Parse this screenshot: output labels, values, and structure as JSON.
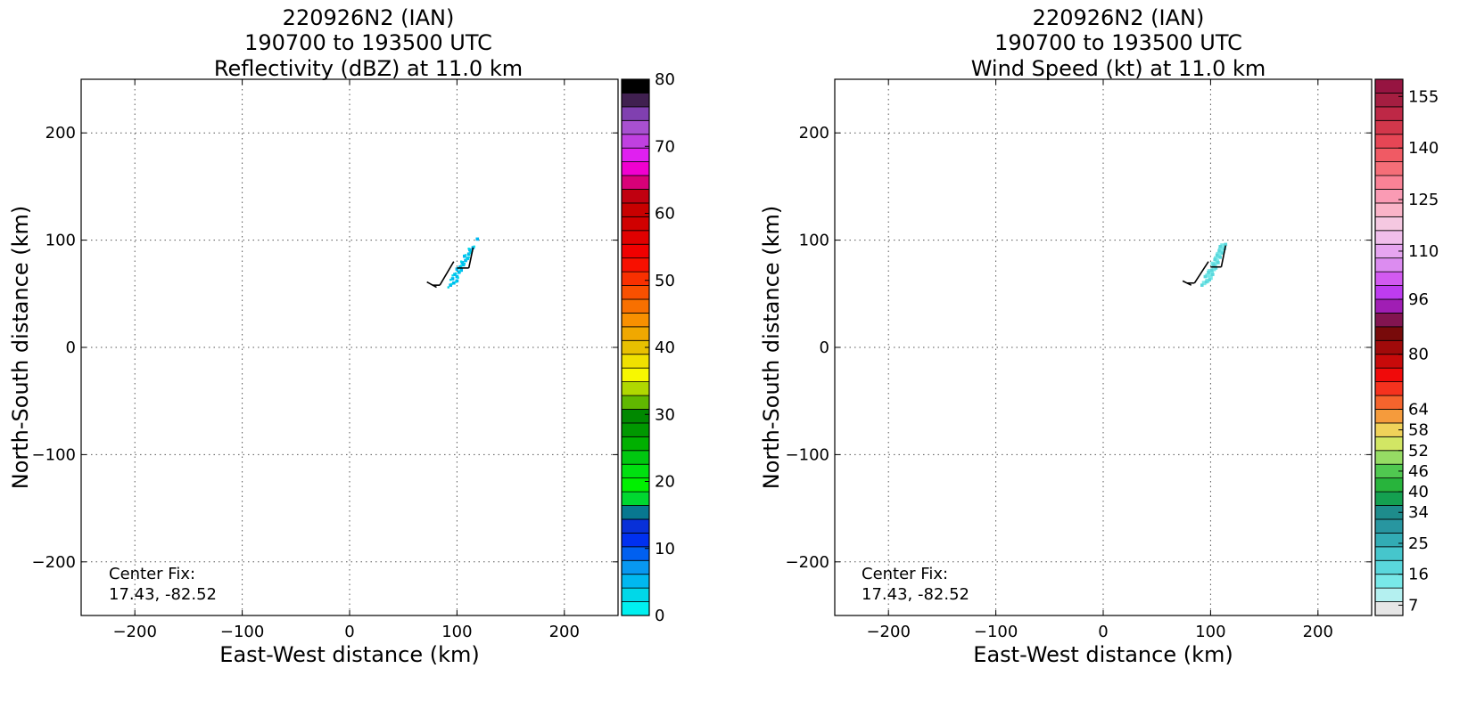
{
  "chart_data": [
    {
      "type": "heatmap",
      "title_lines": [
        "220926N2 (IAN)",
        "190700 to 193500 UTC",
        "Reflectivity (dBZ) at 11.0 km"
      ],
      "xlabel": "East-West distance (km)",
      "ylabel": "North-South distance (km)",
      "xlim": [
        -250,
        250
      ],
      "ylim": [
        -250,
        250
      ],
      "xticks": [
        -200,
        -100,
        0,
        100,
        200
      ],
      "yticks": [
        -200,
        -100,
        0,
        100,
        200
      ],
      "xticklabels": [
        "−200",
        "−100",
        "0",
        "100",
        "200"
      ],
      "yticklabels": [
        "−200",
        "−100",
        "0",
        "100",
        "200"
      ],
      "grid": true,
      "annotation": {
        "line1": "Center Fix:",
        "line2": "17.43, -82.52"
      },
      "colorbar": {
        "min": 0,
        "max": 80,
        "ticks": [
          0,
          10,
          20,
          30,
          40,
          50,
          60,
          70,
          80
        ],
        "ticklabels": [
          "0",
          "10",
          "20",
          "30",
          "40",
          "50",
          "60",
          "70",
          "80"
        ],
        "colors": [
          "#00f0f0",
          "#00d8e8",
          "#00b8f0",
          "#0898f0",
          "#0060f0",
          "#0030f0",
          "#0830d8",
          "#087890",
          "#00d830",
          "#00f000",
          "#00e010",
          "#00c810",
          "#00b000",
          "#009800",
          "#008800",
          "#60b800",
          "#b0d800",
          "#f8f800",
          "#f0e000",
          "#e8c000",
          "#f0a800",
          "#f89000",
          "#f87000",
          "#f85000",
          "#f83000",
          "#f81000",
          "#f00000",
          "#e00000",
          "#d00000",
          "#c80000",
          "#c00010",
          "#d80078",
          "#f000d0",
          "#e020f0",
          "#c040e0",
          "#a850d0",
          "#8040b0",
          "#402050",
          "#000000"
        ]
      },
      "series": [
        {
          "name": "echo_core",
          "points": [
            [
              94,
              58
            ],
            [
              97,
              60
            ],
            [
              100,
              62
            ],
            [
              96,
              64
            ],
            [
              100,
              66
            ],
            [
              98,
              68
            ],
            [
              102,
              70
            ],
            [
              104,
              72
            ],
            [
              100,
              73
            ],
            [
              103,
              75
            ],
            [
              106,
              77
            ],
            [
              105,
              79
            ],
            [
              108,
              81
            ],
            [
              110,
              83
            ],
            [
              107,
              85
            ],
            [
              111,
              87
            ],
            [
              113,
              89
            ],
            [
              112,
              91
            ],
            [
              115,
              93
            ],
            [
              119,
              101
            ]
          ],
          "cell_km": 3,
          "color": "#00b8f0"
        },
        {
          "name": "echo_edge",
          "points": [
            [
              92,
              56
            ],
            [
              95,
              59
            ],
            [
              99,
              61
            ],
            [
              94,
              63
            ],
            [
              101,
              65
            ],
            [
              96,
              67
            ],
            [
              99,
              69
            ],
            [
              103,
              71
            ],
            [
              101,
              74
            ],
            [
              104,
              76
            ],
            [
              107,
              78
            ],
            [
              104,
              80
            ],
            [
              109,
              82
            ],
            [
              111,
              84
            ],
            [
              108,
              86
            ],
            [
              112,
              88
            ],
            [
              114,
              90
            ],
            [
              111,
              92
            ],
            [
              116,
              94
            ]
          ],
          "cell_km": 2,
          "color": "#00d8e8"
        },
        {
          "name": "flight_track",
          "segments": [
            [
              [
                72,
                61
              ],
              [
                81,
                56
              ]
            ],
            [
              [
                77,
                58
              ],
              [
                84,
                58
              ]
            ],
            [
              [
                84,
                58
              ],
              [
                97,
                80
              ]
            ],
            [
              [
                100,
                74
              ],
              [
                111,
                74
              ]
            ],
            [
              [
                111,
                74
              ],
              [
                115,
                93
              ]
            ]
          ]
        }
      ]
    },
    {
      "type": "heatmap",
      "title_lines": [
        "220926N2 (IAN)",
        "190700 to 193500 UTC",
        "Wind Speed (kt) at 11.0 km"
      ],
      "xlabel": "East-West distance (km)",
      "ylabel": "North-South distance (km)",
      "xlim": [
        -250,
        250
      ],
      "ylim": [
        -250,
        250
      ],
      "xticks": [
        -200,
        -100,
        0,
        100,
        200
      ],
      "yticks": [
        -200,
        -100,
        0,
        100,
        200
      ],
      "xticklabels": [
        "−200",
        "−100",
        "0",
        "100",
        "200"
      ],
      "yticklabels": [
        "−200",
        "−100",
        "0",
        "100",
        "200"
      ],
      "grid": true,
      "annotation": {
        "line1": "Center Fix:",
        "line2": "17.43, -82.52"
      },
      "colorbar": {
        "min": 4,
        "max": 160,
        "ticks": [
          7,
          16,
          25,
          34,
          40,
          46,
          52,
          58,
          64,
          80,
          96,
          110,
          125,
          140,
          155
        ],
        "ticklabels": [
          "7",
          "16",
          "25",
          "34",
          "40",
          "46",
          "52",
          "58",
          "64",
          "80",
          "96",
          "110",
          "125",
          "140",
          "155"
        ],
        "colors": [
          "#e6e6e6",
          "#b4f0f0",
          "#78e8e8",
          "#5ad7dc",
          "#46c6cc",
          "#32acb4",
          "#2896a0",
          "#1e8c8c",
          "#14a050",
          "#28b43c",
          "#50c850",
          "#96dc64",
          "#d2e664",
          "#f0d25a",
          "#f59b3c",
          "#f5642d",
          "#f5321e",
          "#f00a0a",
          "#c80a0a",
          "#a00a0a",
          "#780a0a",
          "#821450",
          "#a01eb4",
          "#be3cf0",
          "#d25af0",
          "#dc8cf0",
          "#e6a5f0",
          "#f0beeb",
          "#f5c8e1",
          "#fab4c8",
          "#fa9bb4",
          "#fa8296",
          "#f56e78",
          "#f05a64",
          "#e64655",
          "#d2374b",
          "#be2846",
          "#a51e41",
          "#961441"
        ]
      },
      "series": [
        {
          "name": "wind_core",
          "points": [
            [
              94,
              60
            ],
            [
              97,
              62
            ],
            [
              100,
              65
            ],
            [
              97,
              67
            ],
            [
              101,
              69
            ],
            [
              99,
              71
            ],
            [
              103,
              73
            ],
            [
              104,
              76
            ],
            [
              102,
              78
            ],
            [
              106,
              80
            ],
            [
              105,
              83
            ],
            [
              108,
              85
            ],
            [
              107,
              87
            ],
            [
              110,
              89
            ],
            [
              109,
              91
            ],
            [
              112,
              93
            ],
            [
              111,
              95
            ]
          ],
          "cell_km": 4,
          "color": "#78e8e8"
        },
        {
          "name": "wind_edge",
          "points": [
            [
              92,
              58
            ],
            [
              96,
              61
            ],
            [
              99,
              63
            ],
            [
              95,
              66
            ],
            [
              102,
              68
            ],
            [
              98,
              70
            ],
            [
              101,
              72
            ],
            [
              105,
              74
            ],
            [
              103,
              77
            ],
            [
              107,
              79
            ],
            [
              104,
              82
            ],
            [
              109,
              84
            ],
            [
              106,
              86
            ],
            [
              111,
              88
            ],
            [
              108,
              90
            ],
            [
              113,
              92
            ],
            [
              109,
              94
            ],
            [
              114,
              96
            ]
          ],
          "cell_km": 3,
          "color": "#5ad7dc"
        },
        {
          "name": "flight_track",
          "segments": [
            [
              [
                74,
                62
              ],
              [
                82,
                58
              ]
            ],
            [
              [
                78,
                60
              ],
              [
                85,
                60
              ]
            ],
            [
              [
                85,
                60
              ],
              [
                98,
                80
              ]
            ],
            [
              [
                100,
                75
              ],
              [
                110,
                75
              ]
            ],
            [
              [
                110,
                75
              ],
              [
                114,
                95
              ]
            ]
          ]
        }
      ]
    }
  ]
}
